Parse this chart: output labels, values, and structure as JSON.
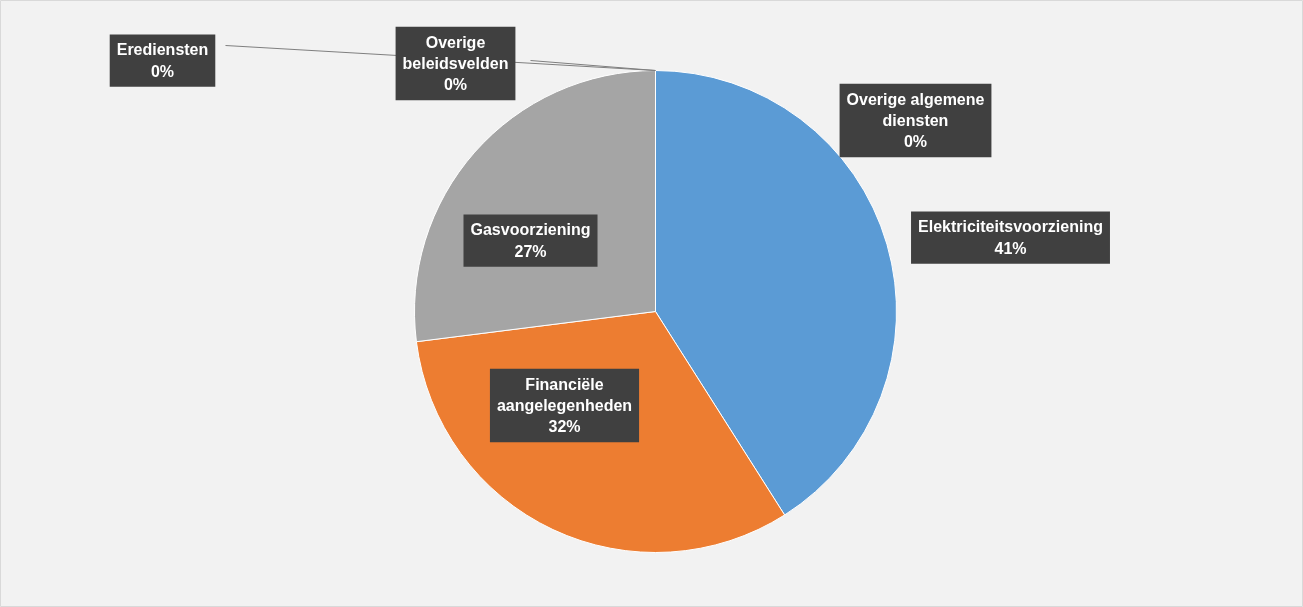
{
  "chart_data": {
    "type": "pie",
    "categories": [
      "Elektriciteitsvoorziening",
      "Financiële aangelegenheden",
      "Gasvoorziening",
      "Overige algemene diensten",
      "Erediensten",
      "Overige beleidsvelden"
    ],
    "values": [
      41,
      32,
      27,
      0,
      0,
      0
    ],
    "colors": [
      "#5b9bd5",
      "#ed7d31",
      "#a5a5a5",
      "#ffc000",
      "#4472c4",
      "#70ad47"
    ],
    "value_labels": [
      "41%",
      "32%",
      "27%",
      "0%",
      "0%",
      "0%"
    ]
  }
}
